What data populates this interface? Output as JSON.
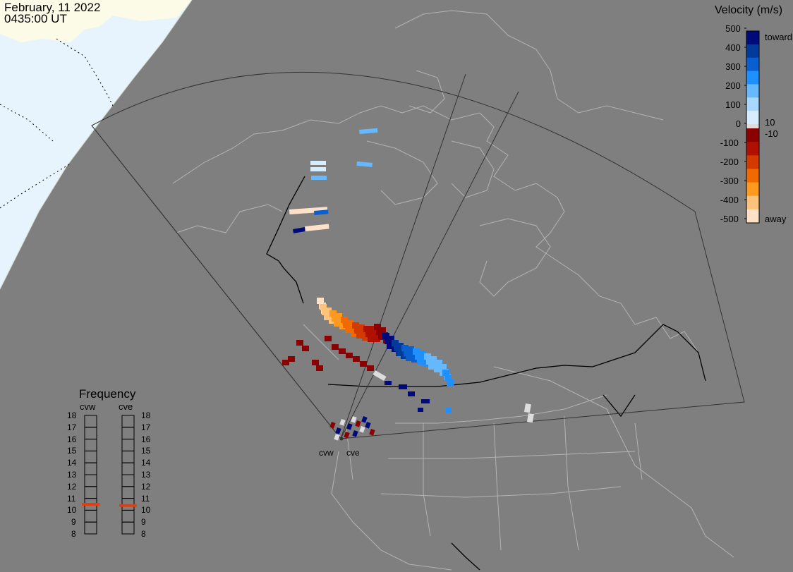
{
  "header": {
    "date": "February, 11 2022",
    "time": "0435:00 UT"
  },
  "velocity_legend": {
    "title": "Velocity (m/s)",
    "ticks": [
      "500",
      "400",
      "300",
      "200",
      "100",
      "0",
      "-100",
      "-200",
      "-300",
      "-400",
      "-500"
    ],
    "toward_label": "toward",
    "away_label": "away",
    "plus_ten": "10",
    "minus_ten": "-10",
    "colors": {
      "toward": [
        "#d6ecff",
        "#a8d8ff",
        "#66b8ff",
        "#1e90ff",
        "#0a5fd0",
        "#003a9a",
        "#000a7a"
      ],
      "zero": "#dddddd",
      "away": [
        "#8b0000",
        "#b01000",
        "#d23a00",
        "#f06a00",
        "#ff9a20",
        "#ffc27a",
        "#ffe1c8"
      ]
    }
  },
  "frequency_legend": {
    "title": "Frequency",
    "radars": [
      "cvw",
      "cve"
    ],
    "ticks": [
      "18",
      "17",
      "16",
      "15",
      "14",
      "13",
      "12",
      "11",
      "10",
      "9",
      "8"
    ],
    "current": {
      "cvw": 10.5,
      "cve": 10.4
    },
    "marker_color": "#e04010"
  },
  "radar_sites": [
    "cvw",
    "cve"
  ]
}
